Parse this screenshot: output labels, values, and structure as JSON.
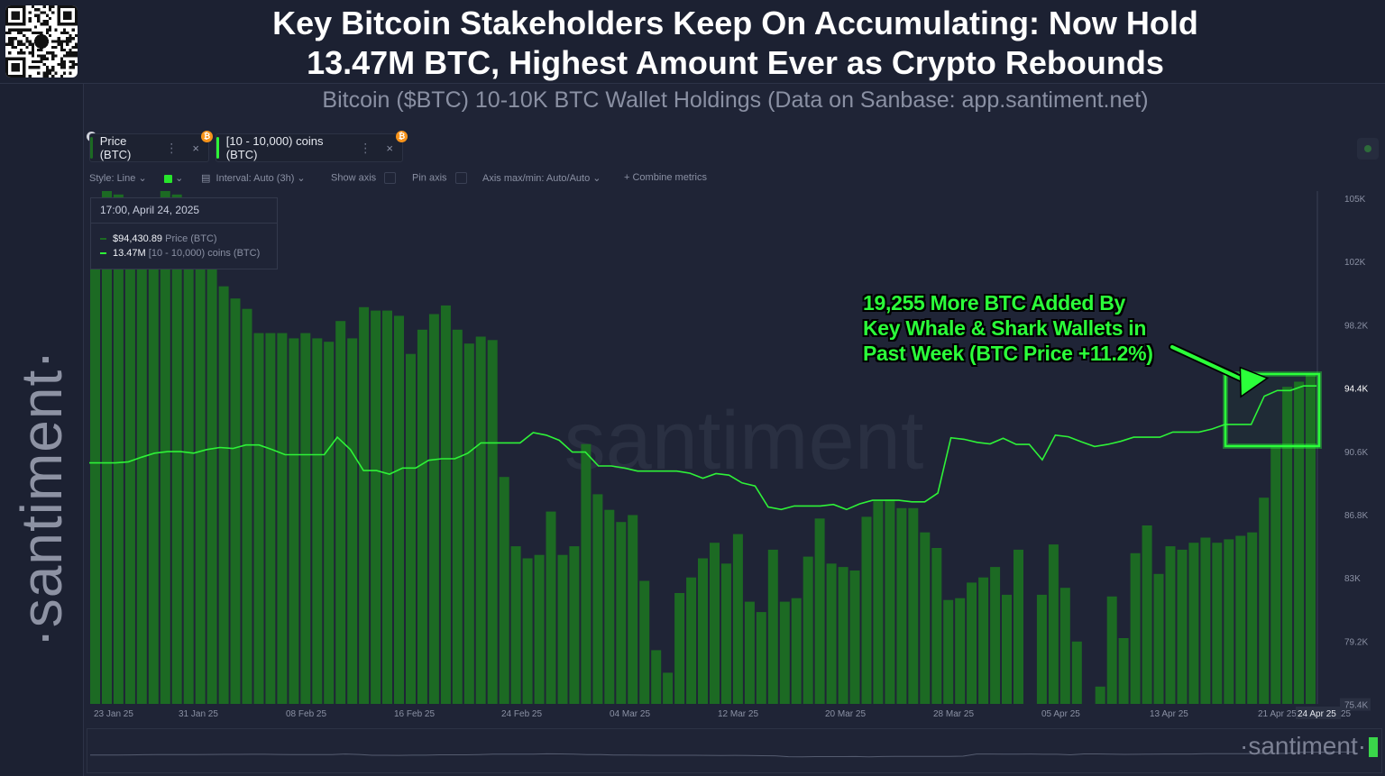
{
  "header": {
    "title_line1": "Key Bitcoin Stakeholders Keep On Accumulating: Now Hold",
    "title_line2": "13.47M BTC, Highest Amount Ever as Crypto Rebounds",
    "subtitle": "Bitcoin ($BTC) 10-10K BTC Wallet Holdings (Data on Sanbase: app.santiment.net)"
  },
  "brand": {
    "vertical": "·santiment·",
    "watermark": "santiment",
    "nav": "·santiment·"
  },
  "tabs": [
    {
      "label": "Price (BTC)",
      "dots": "⋮",
      "close": "×",
      "badge": "₿"
    },
    {
      "label": "[10 - 10,000) coins (BTC)",
      "dots": "⋮",
      "close": "×",
      "badge": "₿"
    }
  ],
  "toolbar": {
    "style": "Style: Line",
    "interval": "Interval: Auto (3h)",
    "show_axis": "Show axis",
    "pin_axis": "Pin axis",
    "axis_maxmin": "Axis max/min: Auto/Auto",
    "combine": "+  Combine metrics"
  },
  "tooltip": {
    "date": "17:00, April 24, 2025",
    "price_value": "$94,430.89",
    "price_label": "Price (BTC)",
    "holdings_value": "13.47M",
    "holdings_label": "[10 - 10,000) coins (BTC)"
  },
  "annotation": {
    "line1": "19,255 More BTC Added By",
    "line2": "Key Whale & Shark Wallets in",
    "line3": "Past Week (BTC Price +11.2%)"
  },
  "colors": {
    "background": "#1f2436",
    "bar_fill": "#1c6a23",
    "line": "#2ef238",
    "highlight": "#2bff3a",
    "badge": "#f7931a"
  },
  "chart_data": {
    "type": "bar+line",
    "x_tick_labels": [
      "23 Jan 25",
      "31 Jan 25",
      "08 Feb 25",
      "16 Feb 25",
      "24 Feb 25",
      "04 Mar 25",
      "12 Mar 25",
      "20 Mar 25",
      "28 Mar 25",
      "05 Apr 25",
      "13 Apr 25",
      "21 Apr 25",
      "24 Apr 25",
      "25"
    ],
    "y_right_ticks": [
      "105K",
      "102K",
      "98.2K",
      "94.4K",
      "90.6K",
      "86.8K",
      "83K",
      "79.2K",
      "75.4K"
    ],
    "y_right_range": [
      75400,
      105000
    ],
    "grid": false,
    "series": [
      {
        "name": "Price (BTC)",
        "type": "bar",
        "values": [
          104500,
          105000,
          104800,
          104200,
          104000,
          103500,
          105000,
          104800,
          102500,
          102000,
          104300,
          99500,
          98800,
          98200,
          96800,
          96800,
          96800,
          96500,
          96800,
          96500,
          96300,
          97500,
          96500,
          98300,
          98100,
          98100,
          97800,
          95600,
          97000,
          97900,
          98400,
          97000,
          96200,
          96600,
          96400,
          88500,
          84500,
          83800,
          84000,
          86500,
          84000,
          84500,
          90400,
          87500,
          86600,
          85900,
          86300,
          82500,
          78500,
          77200,
          81800,
          82700,
          83800,
          84700,
          83500,
          85200,
          81300,
          80700,
          84300,
          81300,
          81500,
          83900,
          86100,
          83500,
          83300,
          83100,
          86200,
          87100,
          87200,
          86700,
          86700,
          85300,
          84400,
          81400,
          81500,
          82400,
          82700,
          83300,
          81700,
          84300,
          75400,
          81700,
          84600,
          82100,
          79000,
          75400,
          76400,
          81600,
          79200,
          84100,
          85700,
          82900,
          84500,
          84300,
          84700,
          85000,
          84700,
          84900,
          85100,
          85300,
          87300,
          90200,
          93700,
          94000,
          94400
        ],
        "value_labels": []
      },
      {
        "name": "[10 - 10,000) coins (BTC)",
        "type": "line",
        "unit": "M BTC",
        "last_value": 13.47,
        "x_positions_note": "n/a",
        "values_relative": [
          0.47,
          0.47,
          0.47,
          0.472,
          0.481,
          0.489,
          0.492,
          0.492,
          0.489,
          0.496,
          0.5,
          0.498,
          0.505,
          0.505,
          0.496,
          0.486,
          0.486,
          0.486,
          0.486,
          0.52,
          0.496,
          0.455,
          0.455,
          0.448,
          0.46,
          0.46,
          0.475,
          0.478,
          0.478,
          0.489,
          0.509,
          0.509,
          0.509,
          0.509,
          0.529,
          0.524,
          0.514,
          0.491,
          0.491,
          0.464,
          0.464,
          0.46,
          0.454,
          0.454,
          0.454,
          0.454,
          0.45,
          0.44,
          0.449,
          0.446,
          0.431,
          0.425,
          0.384,
          0.379,
          0.386,
          0.386,
          0.386,
          0.389,
          0.379,
          0.39,
          0.397,
          0.397,
          0.397,
          0.394,
          0.394,
          0.411,
          0.519,
          0.516,
          0.51,
          0.507,
          0.518,
          0.506,
          0.506,
          0.476,
          0.524,
          0.521,
          0.511,
          0.502,
          0.506,
          0.512,
          0.52,
          0.52,
          0.52,
          0.53,
          0.53,
          0.53,
          0.536,
          0.545,
          0.545,
          0.545,
          0.6,
          0.611,
          0.611,
          0.62,
          0.62
        ]
      }
    ]
  }
}
